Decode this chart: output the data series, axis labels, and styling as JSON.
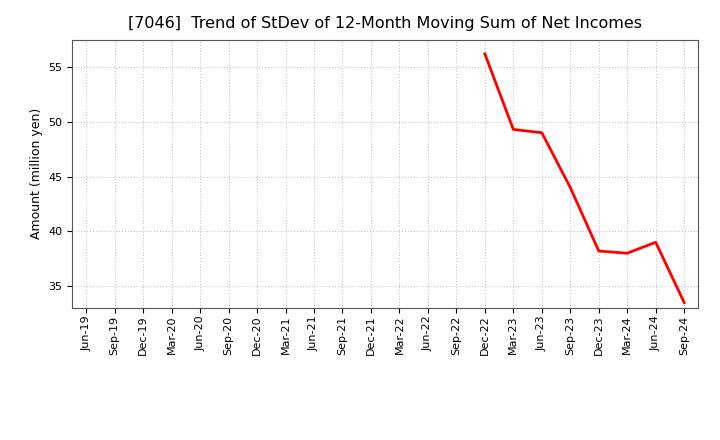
{
  "title": "[7046]  Trend of StDev of 12-Month Moving Sum of Net Incomes",
  "ylabel": "Amount (million yen)",
  "x_labels": [
    "Jun-19",
    "Sep-19",
    "Dec-19",
    "Mar-20",
    "Jun-20",
    "Sep-20",
    "Dec-20",
    "Mar-21",
    "Jun-21",
    "Sep-21",
    "Dec-21",
    "Mar-22",
    "Jun-22",
    "Sep-22",
    "Dec-22",
    "Mar-23",
    "Jun-23",
    "Sep-23",
    "Dec-23",
    "Mar-24",
    "Jun-24",
    "Sep-24"
  ],
  "series": {
    "3 Years": {
      "color": "#ff0000",
      "linewidth": 2.0,
      "data": {
        "Dec-22": 56.2,
        "Mar-23": 49.3,
        "Jun-23": 49.0,
        "Sep-23": 44.0,
        "Dec-23": 38.2,
        "Mar-24": 38.0,
        "Jun-24": 39.0,
        "Sep-24": 33.5
      }
    },
    "5 Years": {
      "color": "#0000ff",
      "linewidth": 2.0,
      "data": {}
    },
    "7 Years": {
      "color": "#00cccc",
      "linewidth": 2.0,
      "data": {}
    },
    "10 Years": {
      "color": "#008800",
      "linewidth": 2.0,
      "data": {}
    }
  },
  "ylim": [
    33.0,
    57.5
  ],
  "yticks": [
    35,
    40,
    45,
    50,
    55
  ],
  "grid_color": "#bbbbbb",
  "background_color": "#ffffff",
  "title_fontsize": 11.5,
  "axis_fontsize": 9,
  "tick_fontsize": 8
}
